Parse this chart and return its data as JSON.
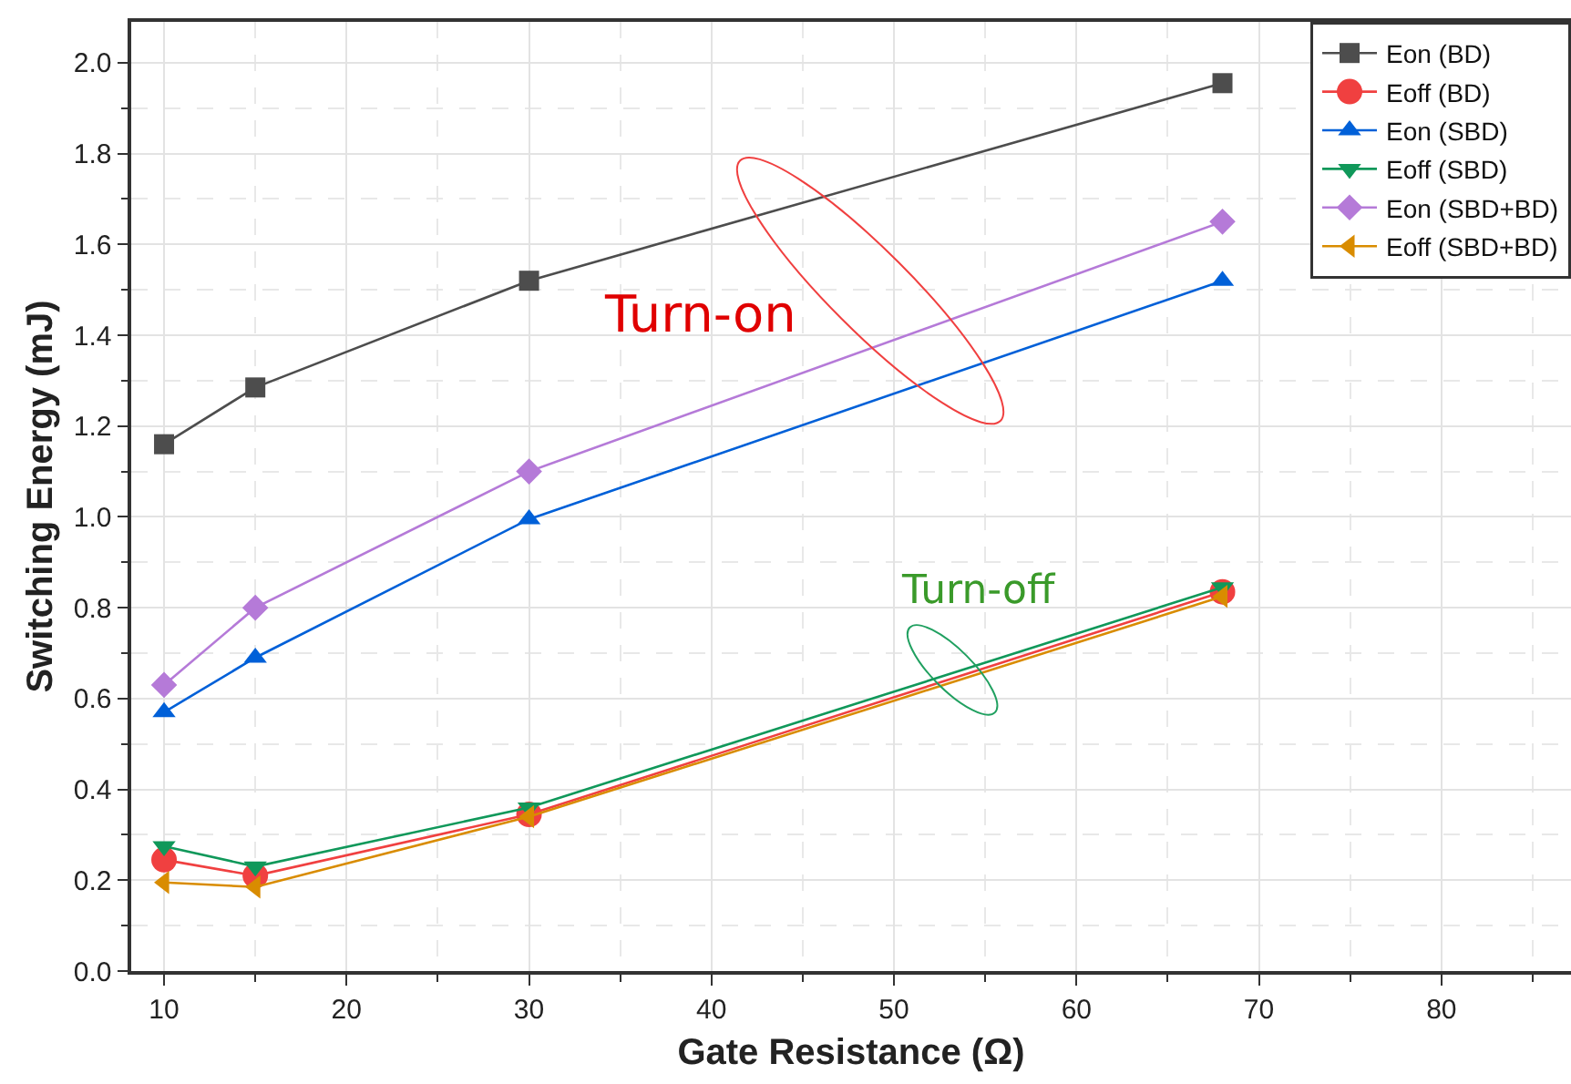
{
  "chart_data": {
    "type": "line",
    "xlabel": "Gate Resistance (Ω)",
    "ylabel": "Switching Energy (mJ)",
    "x": [
      10,
      15,
      30,
      68
    ],
    "series": [
      {
        "name": "Eon (BD)",
        "color": "#4d4d4d",
        "marker": "square",
        "values": [
          1.16,
          1.285,
          1.52,
          1.955
        ]
      },
      {
        "name": "Eoff (BD)",
        "color": "#f04040",
        "marker": "circle",
        "values": [
          0.245,
          0.21,
          0.345,
          0.835
        ]
      },
      {
        "name": "Eon (SBD)",
        "color": "#0060d8",
        "marker": "triangle",
        "values": [
          0.57,
          0.69,
          0.995,
          1.52
        ]
      },
      {
        "name": "Eoff (SBD)",
        "color": "#10985a",
        "marker": "triangle-down",
        "values": [
          0.275,
          0.23,
          0.36,
          0.845
        ]
      },
      {
        "name": "Eon (SBD+BD)",
        "color": "#b57ad8",
        "marker": "diamond",
        "values": [
          0.63,
          0.8,
          1.1,
          1.65
        ]
      },
      {
        "name": "Eoff (SBD+BD)",
        "color": "#d98c00",
        "marker": "triangle-left",
        "values": [
          0.195,
          0.185,
          0.34,
          0.825
        ]
      }
    ],
    "xlim": [
      8.2,
      87.1
    ],
    "xticks": [
      10,
      20,
      30,
      40,
      50,
      60,
      70,
      80
    ],
    "ylim": [
      0,
      2.09
    ],
    "yticks": [
      {
        "value": 0,
        "label": "0.0"
      },
      {
        "value": 0.2,
        "label": "0.2"
      },
      {
        "value": 0.4,
        "label": "0.4"
      },
      {
        "value": 0.6,
        "label": "0.6"
      },
      {
        "value": 0.8,
        "label": "0.8"
      },
      {
        "value": 1,
        "label": "1.0"
      },
      {
        "value": 1.2,
        "label": "1.2"
      },
      {
        "value": 1.4,
        "label": "1.4"
      },
      {
        "value": 1.6,
        "label": "1.6"
      },
      {
        "value": 1.8,
        "label": "1.8"
      },
      {
        "value": 2,
        "label": "2.0"
      }
    ],
    "annotations": [
      "Turn-on",
      "Turn-off"
    ],
    "grid": true,
    "legend": "top right",
    "line_style": "solid"
  }
}
